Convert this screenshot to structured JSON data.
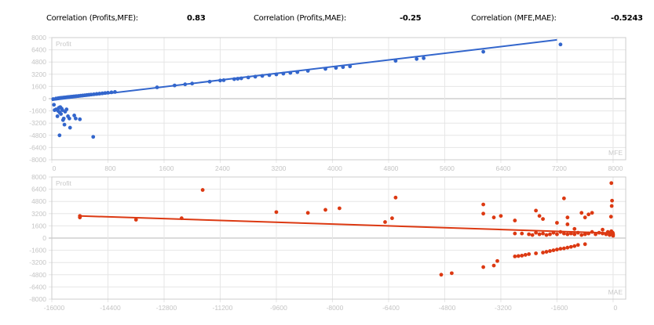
{
  "correlations": [
    {
      "label": "Correlation (Profits,MFE):",
      "value": "0.83"
    },
    {
      "label": "Correlation (Profits,MAE):",
      "value": "-0.25"
    },
    {
      "label": "Correlation (MFE,MAE):",
      "value": "-0.5243"
    }
  ],
  "chart_data": [
    {
      "type": "scatter",
      "xlabel": "MFE",
      "ylabel": "Profit",
      "xlim": [
        0,
        8180
      ],
      "ylim": [
        -8000,
        8000
      ],
      "xticks": [
        0,
        800,
        1600,
        2400,
        3200,
        4000,
        4800,
        5600,
        6400,
        7200,
        8000
      ],
      "yticks": [
        8000,
        6400,
        4800,
        3200,
        1600,
        0,
        -1600,
        -3200,
        -4800,
        -6400,
        -8000
      ],
      "grid": true,
      "color": "#3366cc",
      "trendline": [
        [
          0,
          -200
        ],
        [
          7200,
          7700
        ]
      ],
      "points": [
        [
          20,
          -50
        ],
        [
          60,
          20
        ],
        [
          90,
          60
        ],
        [
          110,
          90
        ],
        [
          130,
          110
        ],
        [
          150,
          130
        ],
        [
          170,
          150
        ],
        [
          190,
          170
        ],
        [
          210,
          190
        ],
        [
          230,
          210
        ],
        [
          250,
          230
        ],
        [
          270,
          250
        ],
        [
          290,
          270
        ],
        [
          310,
          290
        ],
        [
          330,
          310
        ],
        [
          350,
          330
        ],
        [
          380,
          360
        ],
        [
          410,
          390
        ],
        [
          440,
          420
        ],
        [
          470,
          450
        ],
        [
          500,
          480
        ],
        [
          530,
          510
        ],
        [
          560,
          540
        ],
        [
          600,
          580
        ],
        [
          640,
          620
        ],
        [
          680,
          660
        ],
        [
          720,
          700
        ],
        [
          760,
          740
        ],
        [
          800,
          780
        ],
        [
          850,
          830
        ],
        [
          900,
          880
        ],
        [
          1500,
          1480
        ],
        [
          1750,
          1730
        ],
        [
          1900,
          1880
        ],
        [
          2000,
          1980
        ],
        [
          2250,
          2230
        ],
        [
          2400,
          2380
        ],
        [
          2450,
          2420
        ],
        [
          2600,
          2560
        ],
        [
          2650,
          2610
        ],
        [
          2700,
          2660
        ],
        [
          2800,
          2780
        ],
        [
          2900,
          2880
        ],
        [
          3000,
          2980
        ],
        [
          3100,
          3080
        ],
        [
          3200,
          3180
        ],
        [
          3300,
          3280
        ],
        [
          3400,
          3380
        ],
        [
          3500,
          3480
        ],
        [
          3650,
          3650
        ],
        [
          3900,
          3900
        ],
        [
          4050,
          4030
        ],
        [
          4150,
          4130
        ],
        [
          4250,
          4230
        ],
        [
          4900,
          4950
        ],
        [
          5200,
          5200
        ],
        [
          5300,
          5300
        ],
        [
          6150,
          6150
        ],
        [
          7250,
          7100
        ],
        [
          30,
          -800
        ],
        [
          40,
          -1500
        ],
        [
          60,
          -1400
        ],
        [
          80,
          -2300
        ],
        [
          90,
          -1600
        ],
        [
          100,
          -1200
        ],
        [
          110,
          -1800
        ],
        [
          120,
          -1100
        ],
        [
          130,
          -2000
        ],
        [
          140,
          -1300
        ],
        [
          150,
          -1500
        ],
        [
          160,
          -2800
        ],
        [
          170,
          -2600
        ],
        [
          180,
          -3400
        ],
        [
          190,
          -1700
        ],
        [
          210,
          -1400
        ],
        [
          230,
          -2300
        ],
        [
          250,
          -2600
        ],
        [
          260,
          -3800
        ],
        [
          320,
          -2200
        ],
        [
          340,
          -2600
        ],
        [
          400,
          -2700
        ],
        [
          110,
          -4800
        ],
        [
          590,
          -5000
        ]
      ]
    },
    {
      "type": "scatter",
      "xlabel": "MAE",
      "ylabel": "Profit",
      "xlim": [
        -16000,
        360
      ],
      "ylim": [
        -8000,
        8000
      ],
      "xticks": [
        -16000,
        -14400,
        -12800,
        -11200,
        -9600,
        -8000,
        -6400,
        -4800,
        -3200,
        -1600,
        0
      ],
      "yticks": [
        8000,
        6400,
        4800,
        3200,
        1600,
        0,
        -1600,
        -3200,
        -4800,
        -6400,
        -8000
      ],
      "grid": true,
      "color": "#dc3912",
      "trendline": [
        [
          -15200,
          2900
        ],
        [
          0,
          650
        ]
      ],
      "points": [
        [
          -15200,
          2700
        ],
        [
          -15200,
          2900
        ],
        [
          -13600,
          2400
        ],
        [
          -12300,
          2600
        ],
        [
          -11700,
          6300
        ],
        [
          -9600,
          3400
        ],
        [
          -8700,
          3300
        ],
        [
          -8200,
          3700
        ],
        [
          -7800,
          3900
        ],
        [
          -6200,
          5300
        ],
        [
          -6500,
          2100
        ],
        [
          -6300,
          2600
        ],
        [
          -4900,
          -4800
        ],
        [
          -4600,
          -4600
        ],
        [
          -3700,
          4400
        ],
        [
          -3700,
          3200
        ],
        [
          -3400,
          2700
        ],
        [
          -3200,
          2900
        ],
        [
          -2800,
          2300
        ],
        [
          -2200,
          3600
        ],
        [
          -2100,
          2900
        ],
        [
          -2000,
          2500
        ],
        [
          -1600,
          2000
        ],
        [
          -1400,
          5200
        ],
        [
          -1300,
          2700
        ],
        [
          -1300,
          1800
        ],
        [
          -1100,
          1200
        ],
        [
          -900,
          3300
        ],
        [
          -800,
          2700
        ],
        [
          -700,
          3100
        ],
        [
          -600,
          3300
        ],
        [
          -300,
          1100
        ],
        [
          -50,
          7200
        ],
        [
          -40,
          4200
        ],
        [
          -30,
          4900
        ],
        [
          -60,
          2800
        ],
        [
          -3700,
          -3800
        ],
        [
          -3400,
          -3600
        ],
        [
          -3300,
          -3000
        ],
        [
          -2800,
          -2400
        ],
        [
          -2700,
          -2350
        ],
        [
          -2600,
          -2300
        ],
        [
          -2500,
          -2200
        ],
        [
          -2400,
          -2100
        ],
        [
          -2200,
          -2000
        ],
        [
          -2000,
          -1900
        ],
        [
          -1900,
          -1800
        ],
        [
          -1800,
          -1700
        ],
        [
          -1700,
          -1600
        ],
        [
          -1600,
          -1500
        ],
        [
          -1500,
          -1400
        ],
        [
          -1400,
          -1350
        ],
        [
          -1300,
          -1250
        ],
        [
          -1200,
          -1150
        ],
        [
          -1100,
          -1050
        ],
        [
          -1000,
          -900
        ],
        [
          -800,
          -800
        ],
        [
          -2800,
          600
        ],
        [
          -2600,
          600
        ],
        [
          -2400,
          500
        ],
        [
          -2300,
          400
        ],
        [
          -2200,
          700
        ],
        [
          -2100,
          500
        ],
        [
          -2000,
          600
        ],
        [
          -1900,
          400
        ],
        [
          -1800,
          500
        ],
        [
          -1700,
          700
        ],
        [
          -1600,
          500
        ],
        [
          -1500,
          800
        ],
        [
          -1400,
          600
        ],
        [
          -1300,
          500
        ],
        [
          -1200,
          600
        ],
        [
          -1100,
          500
        ],
        [
          -1000,
          700
        ],
        [
          -900,
          400
        ],
        [
          -800,
          500
        ],
        [
          -700,
          600
        ],
        [
          -600,
          800
        ],
        [
          -500,
          500
        ],
        [
          -400,
          700
        ],
        [
          -300,
          600
        ],
        [
          -200,
          500
        ],
        [
          -150,
          800
        ],
        [
          -100,
          400
        ],
        [
          -80,
          600
        ],
        [
          -50,
          900
        ],
        [
          -30,
          500
        ],
        [
          -10,
          700
        ],
        [
          0,
          300
        ],
        [
          0,
          500
        ]
      ]
    }
  ]
}
